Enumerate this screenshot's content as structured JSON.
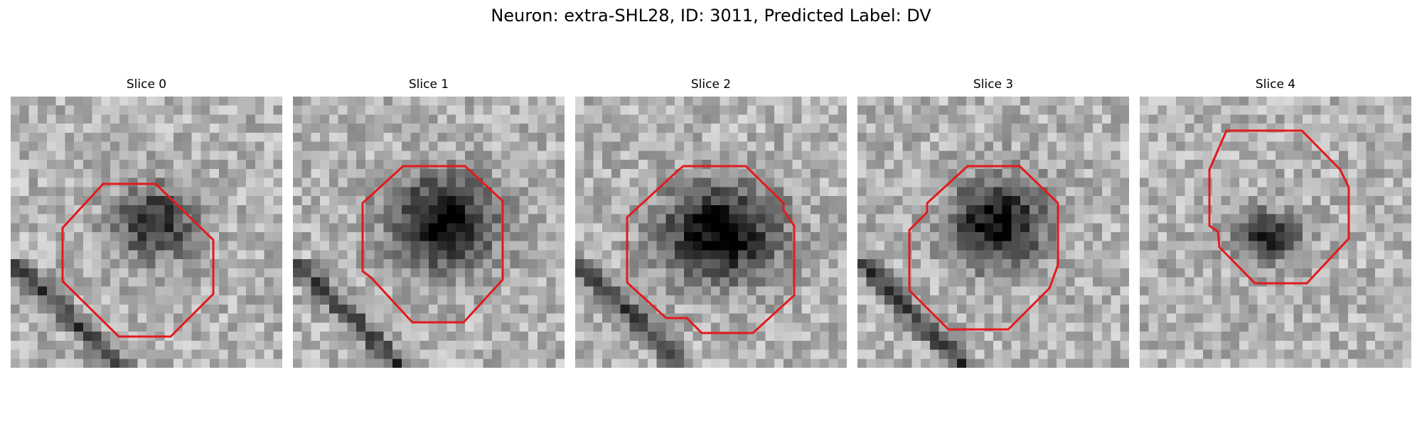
{
  "figure": {
    "title": "Neuron: extra-SHL28, ID: 3011, Predicted Label: DV",
    "outline_color": "#e31a1c",
    "colormap": "grayscale"
  },
  "panels": [
    {
      "title": "Slice 0"
    },
    {
      "title": "Slice 1"
    },
    {
      "title": "Slice 2"
    },
    {
      "title": "Slice 3"
    },
    {
      "title": "Slice 4"
    }
  ]
}
